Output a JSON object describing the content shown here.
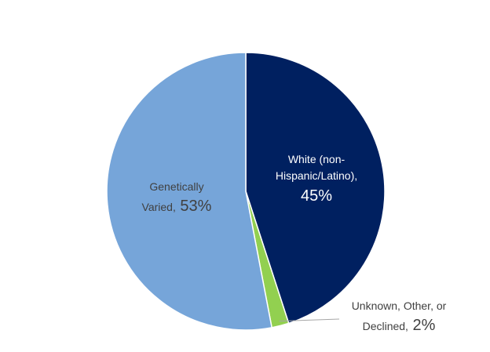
{
  "chart_data": {
    "type": "pie",
    "title": "",
    "slices": [
      {
        "label_lines": [
          "White (non-",
          "Hispanic/Latino),"
        ],
        "percent_label": "45%",
        "value": 45,
        "color": "#002060",
        "label_color": "#ffffff"
      },
      {
        "label_lines": [
          "Unknown, Other, or",
          "Declined,"
        ],
        "percent_label": "2%",
        "value": 2,
        "color": "#92d050",
        "label_color": "#404040"
      },
      {
        "label_lines": [
          "Genetically",
          "Varied,"
        ],
        "percent_label": "53%",
        "value": 53,
        "color": "#76a5d9",
        "label_color": "#404040"
      }
    ]
  }
}
